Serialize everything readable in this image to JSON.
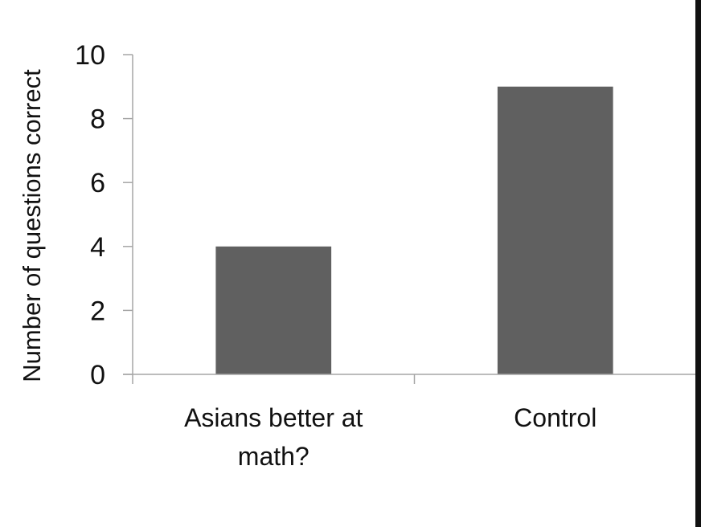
{
  "colors": {
    "bar": "#606060",
    "axis": "#a6a6a6",
    "text": "#111111",
    "border": "#111111"
  },
  "chart_data": {
    "type": "bar",
    "title": "",
    "xlabel": "",
    "ylabel": "Number of questions correct",
    "categories": [
      [
        "Asians better at",
        "math?"
      ],
      [
        "Control"
      ]
    ],
    "values": [
      4,
      9
    ],
    "ylim": [
      0,
      10
    ],
    "yticks": [
      0,
      2,
      4,
      6,
      8,
      10
    ],
    "grid": false,
    "legend": "none"
  }
}
